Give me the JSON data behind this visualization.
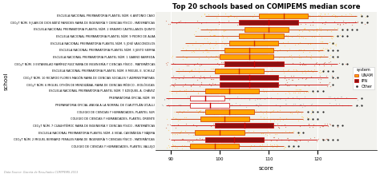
{
  "title": "Top 20 schools based on COMIPEMS median score",
  "xlabel": "score",
  "ylabel": "school",
  "footnote": "Data Source: Gaceta de Resultados COMIPEMS 2013",
  "xlim": [
    87,
    132
  ],
  "xticks": [
    90,
    100,
    110,
    120
  ],
  "schools": [
    {
      "name": "ESCUELA NACIONAL PREPARATORIA PLANTEL NÚM. 6 ANTONIO CASO",
      "system": "UNAM",
      "q1": 108,
      "median": 113,
      "q3": 118,
      "whisker_low": 97,
      "whisker_high": 128,
      "far_pts": [
        129,
        130
      ]
    },
    {
      "name": "CECyT NÚM. 9 JUAN DE DIOS BÁTIZ PAREDES RAMA DE INGENIERÍA Y CIENCIAS FÍSICO - MATEMÁTICAS",
      "system": "IPN",
      "q1": 104,
      "median": 110,
      "q3": 116,
      "whisker_low": 90,
      "whisker_high": 128,
      "far_pts": [
        129,
        130
      ]
    },
    {
      "name": "ESCUELA NACIONAL PREPARATORIA PLANTEL NÚM. 2 ERASMO CASTELLANOS QUINTO",
      "system": "UNAM",
      "q1": 105,
      "median": 110,
      "q3": 114,
      "whisker_low": 96,
      "whisker_high": 124,
      "far_pts": [
        125,
        126,
        127,
        128
      ]
    },
    {
      "name": "ESCUELA NACIONAL PREPARATORIA PLANTEL NÚM. 9 PEDRO DE ALBA",
      "system": "UNAM",
      "q1": 104,
      "median": 109,
      "q3": 113,
      "whisker_low": 95,
      "whisker_high": 123,
      "far_pts": [
        124,
        125,
        126
      ]
    },
    {
      "name": "ESCUELA NACIONAL PREPARATORIA PLANTEL NÚM. 5 JOSÉ VASCONCELOS",
      "system": "UNAM",
      "q1": 102,
      "median": 107,
      "q3": 112,
      "whisker_low": 93,
      "whisker_high": 122,
      "far_pts": [
        123
      ]
    },
    {
      "name": "ESCUELA NACIONAL PREPARATORIA PLANTEL NÚM. 3 JUSTO SIERRA",
      "system": "UNAM",
      "q1": 101,
      "median": 106,
      "q3": 111,
      "whisker_low": 92,
      "whisker_high": 121,
      "far_pts": [
        122,
        123,
        124
      ]
    },
    {
      "name": "ESCUELA NACIONAL PREPARATORIA PLANTEL NÚM. 1 GABINO BARREDA",
      "system": "UNAM",
      "q1": 100,
      "median": 106,
      "q3": 111,
      "whisker_low": 91,
      "whisker_high": 122,
      "far_pts": [
        123,
        124
      ]
    },
    {
      "name": "CECyT NÚM. 3 ESTANISLAO RAMÍREZ RUIZ RAMA DE INGENIERÍA Y CIENCIAS FÍSICO - MATEMÁTICAS",
      "system": "IPN",
      "q1": 101,
      "median": 107,
      "q3": 113,
      "whisker_low": 90,
      "whisker_high": 124,
      "far_pts": [
        125,
        126
      ]
    },
    {
      "name": "ESCUELA NACIONAL PREPARATORIA PLANTEL NÚM. 8 MIGUEL E. SCHULZ",
      "system": "UNAM",
      "q1": 99,
      "median": 104,
      "q3": 109,
      "whisker_low": 91,
      "whisker_high": 120,
      "far_pts": [
        121,
        122,
        123
      ]
    },
    {
      "name": "CECyT NÚM. 10 RICARDO FLORES MAGÓN RAMA DE CIENCIAS SOCIALES Y ADMINISTRATIVAS",
      "system": "IPN",
      "q1": 100,
      "median": 106,
      "q3": 112,
      "whisker_low": 90,
      "whisker_high": 122,
      "far_pts": [
        123,
        124
      ]
    },
    {
      "name": "CECyT NÚM. 6 MIGUEL OTHÓN DE MENDIZÁBAL RAMA DE CIENCIAS MÉDICO - BIOLÓGICAS",
      "system": "IPN",
      "q1": 100,
      "median": 106,
      "q3": 112,
      "whisker_low": 90,
      "whisker_high": 122,
      "far_pts": [
        123
      ]
    },
    {
      "name": "ESCUELA NACIONAL PREPARATORIA PLANTEL NÚM. 7 EZEQUIEL A. CHÁVEZ",
      "system": "UNAM",
      "q1": 97,
      "median": 102,
      "q3": 108,
      "whisker_low": 90,
      "whisker_high": 118,
      "far_pts": [
        119,
        120,
        121
      ]
    },
    {
      "name": "PREPARATORIA OFICIAL NÚM. 99",
      "system": "Other",
      "q1": 94,
      "median": 97,
      "q3": 101,
      "whisker_low": 89,
      "whisker_high": 128,
      "far_pts": [
        129
      ]
    },
    {
      "name": "PREPARATORIA OFICIAL ANEXA A LA NORMAL DE CUAUTITLÁN IZCALLI",
      "system": "Other",
      "q1": 94,
      "median": 98,
      "q3": 102,
      "whisker_low": 89,
      "whisker_high": 127,
      "far_pts": [
        128,
        129
      ]
    },
    {
      "name": "COLEGIO DE CIENCIAS Y HUMANIDADES, PLANTEL SUR",
      "system": "UNAM",
      "q1": 97,
      "median": 102,
      "q3": 107,
      "whisker_low": 91,
      "whisker_high": 117,
      "far_pts": [
        118,
        119,
        120,
        121
      ]
    },
    {
      "name": "COLEGIO DE CIENCIAS Y HUMANIDADES, PLANTEL ORIENTE",
      "system": "UNAM",
      "q1": 96,
      "median": 101,
      "q3": 106,
      "whisker_low": 90,
      "whisker_high": 117,
      "far_pts": [
        118,
        119,
        120
      ]
    },
    {
      "name": "CECyT NÚM. 7 CUAUHTÉMOC RAMA DE INGENIERÍA Y CIENCIAS FÍSICO - MATEMÁTICAS",
      "system": "IPN",
      "q1": 99,
      "median": 105,
      "q3": 111,
      "whisker_low": 90,
      "whisker_high": 122,
      "far_pts": [
        123,
        124,
        125
      ]
    },
    {
      "name": "ESCUELA NACIONAL PREPARATORIA PLANTEL NÚM. 4 VIDAL CASTAÑEDA Y NÁJERA",
      "system": "UNAM",
      "q1": 95,
      "median": 100,
      "q3": 105,
      "whisker_low": 90,
      "whisker_high": 115,
      "far_pts": [
        116,
        117
      ]
    },
    {
      "name": "CECyT NÚM. 2 MIGUEL BERNARD PERALES RAMA DE INGENIERÍA Y CIENCIAS FÍSICO - MATEMÁTICAS",
      "system": "IPN",
      "q1": 97,
      "median": 103,
      "q3": 109,
      "whisker_low": 90,
      "whisker_high": 120,
      "far_pts": [
        121,
        122,
        123,
        124
      ]
    },
    {
      "name": "COLEGIO DE CIENCIAS Y HUMANIDADES, PLANTEL VALLEJO",
      "system": "UNAM",
      "q1": 94,
      "median": 99,
      "q3": 104,
      "whisker_low": 90,
      "whisker_high": 113,
      "far_pts": [
        114,
        115,
        116
      ]
    }
  ],
  "unam_box_color": "#FFA500",
  "unam_median_color": "#CC3300",
  "unam_whisker_color": "#CC3300",
  "unam_jitter_color": "#FFCC44",
  "ipn_box_color": "#8B1010",
  "ipn_median_color": "#CC0000",
  "ipn_whisker_color": "#CC0000",
  "ipn_jitter_color": "#CC5533",
  "other_box_color": "#FFFFFF",
  "other_border_color": "#CC0000",
  "other_jitter_color": "#AAAAAA",
  "far_pt_color_unam": "#333333",
  "far_pt_color_ipn": "#333333",
  "far_pt_color_other": "#333333",
  "bg_color": "#FFFFFF",
  "plot_bg": "#F2F2EE",
  "grid_color": "#FFFFFF"
}
